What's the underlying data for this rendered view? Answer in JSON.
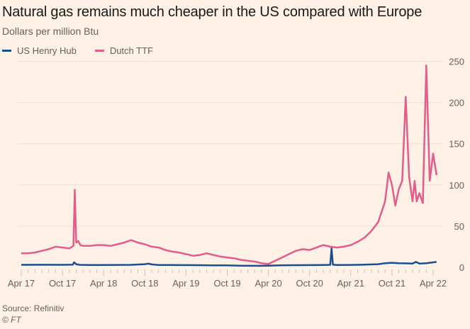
{
  "chart_data": {
    "type": "line",
    "title": "Natural gas remains much cheaper in the US compared with Europe",
    "subtitle": "Dollars per million Btu",
    "xlabel": "",
    "ylabel": "",
    "ylim": [
      0,
      250
    ],
    "yticks": [
      0,
      50,
      100,
      150,
      200,
      250
    ],
    "xticks": [
      "Apr 17",
      "Oct 17",
      "Apr 18",
      "Oct 18",
      "Apr 19",
      "Oct 19",
      "Apr 20",
      "Oct 20",
      "Apr 21",
      "Oct 21",
      "Apr 22"
    ],
    "x_range_months": [
      0,
      60.5
    ],
    "grid": true,
    "legend_position": "top-left",
    "series": [
      {
        "name": "US Henry Hub",
        "color": "#1a4f8f",
        "x_months": [
          0,
          3,
          6,
          7.5,
          7.7,
          8,
          8.5,
          10,
          12,
          14,
          16,
          18,
          18.5,
          19,
          20,
          22,
          24,
          26,
          28,
          30,
          32,
          34,
          36,
          38,
          40,
          42,
          44,
          45,
          45.2,
          45.4,
          46,
          48,
          50,
          52,
          53,
          54,
          55,
          56,
          57,
          57.5,
          58,
          59,
          60,
          60.5
        ],
        "values": [
          3.0,
          3.1,
          3.0,
          3.2,
          6.0,
          3.8,
          3.0,
          2.8,
          2.8,
          2.9,
          3.0,
          3.8,
          4.5,
          3.5,
          2.8,
          2.8,
          2.7,
          2.6,
          2.4,
          2.3,
          1.9,
          1.8,
          2.0,
          2.5,
          2.6,
          2.7,
          2.8,
          3.0,
          23.0,
          3.2,
          2.8,
          2.9,
          3.2,
          3.8,
          5.0,
          5.5,
          5.0,
          4.8,
          4.5,
          6.5,
          4.5,
          5.0,
          6.0,
          6.5
        ]
      },
      {
        "name": "Dutch TTF",
        "color": "#e45c8b",
        "x_months": [
          0,
          1,
          2,
          3,
          4,
          5,
          6,
          7,
          7.6,
          7.8,
          8,
          8.3,
          8.6,
          9,
          10,
          11,
          12,
          13,
          14,
          15,
          16,
          17,
          18,
          19,
          20,
          21,
          22,
          23,
          24,
          25,
          26,
          27,
          28,
          29,
          30,
          31,
          32,
          33,
          34,
          35,
          36,
          36.5,
          37,
          38,
          39,
          40,
          41,
          42,
          43,
          44,
          45,
          46,
          47,
          48,
          49,
          50,
          51,
          52,
          53,
          53.5,
          54,
          54.5,
          55,
          55.5,
          56,
          56.5,
          57,
          57.3,
          57.6,
          58,
          58.5,
          59,
          59.5,
          60,
          60.5
        ],
        "values": [
          17,
          17,
          18,
          20,
          22,
          25,
          24,
          23,
          26,
          94,
          30,
          32,
          27,
          26,
          26,
          27,
          27,
          26,
          28,
          30,
          33,
          30,
          28,
          25,
          24,
          21,
          19,
          18,
          16,
          14,
          15,
          17,
          15,
          13,
          12,
          11,
          9,
          8,
          7,
          5,
          4,
          6,
          8,
          12,
          16,
          20,
          22,
          21,
          24,
          27,
          25,
          24,
          25,
          27,
          31,
          36,
          44,
          55,
          80,
          115,
          100,
          75,
          95,
          105,
          207,
          110,
          80,
          105,
          80,
          90,
          78,
          245,
          105,
          138,
          112
        ]
      }
    ]
  },
  "legend": {
    "items": [
      {
        "label": "US Henry Hub",
        "color": "#1a4f8f"
      },
      {
        "label": "Dutch TTF",
        "color": "#e45c8b"
      }
    ]
  },
  "footer": {
    "source": "Source: Refinitiv",
    "copyright": "© FT"
  }
}
